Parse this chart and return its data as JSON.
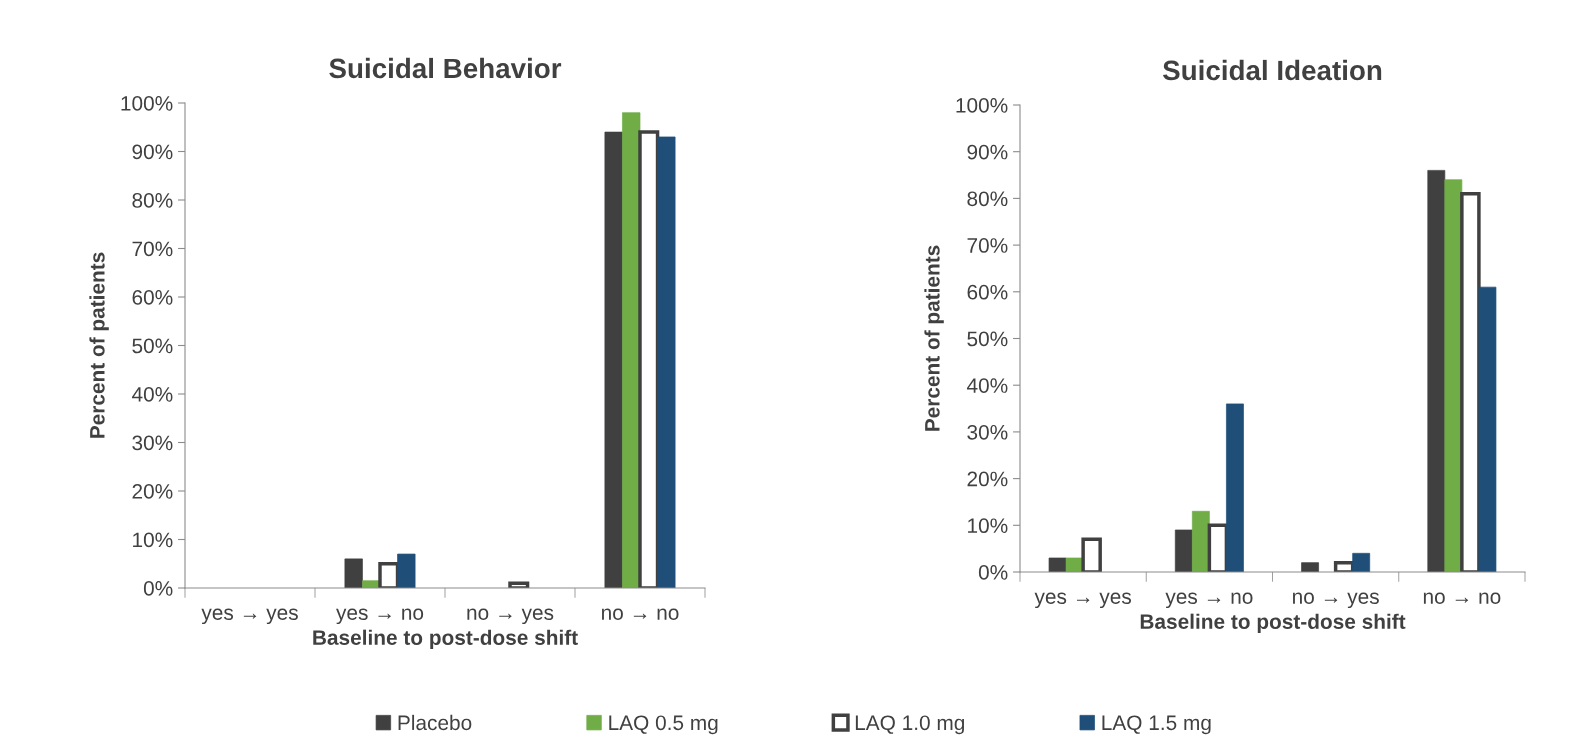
{
  "chart_data": [
    {
      "type": "bar",
      "title": "Suicidal Behavior",
      "xlabel": "Baseline to post-dose shift",
      "ylabel": "Percent of patients",
      "categories": [
        "yes → yes",
        "yes → no",
        "no → yes",
        "no → no"
      ],
      "series": [
        {
          "name": "Placebo",
          "color": "#404040",
          "values": [
            0,
            6,
            0,
            94
          ]
        },
        {
          "name": "LAQ 0.5 mg",
          "color": "#70ad47",
          "values": [
            0,
            1.5,
            0,
            98
          ]
        },
        {
          "name": "LAQ 1.0 mg",
          "color": "#ffffff",
          "values": [
            0,
            5,
            1,
            94
          ]
        },
        {
          "name": "LAQ 1.5 mg",
          "color": "#1f4e79",
          "values": [
            0,
            7,
            0,
            93
          ]
        }
      ],
      "ylim": [
        0,
        100
      ],
      "yticks": [
        {
          "value": 0,
          "label": "0%"
        },
        {
          "value": 10,
          "label": "10%"
        },
        {
          "value": 20,
          "label": "20%"
        },
        {
          "value": 30,
          "label": "30%"
        },
        {
          "value": 40,
          "label": "40%"
        },
        {
          "value": 50,
          "label": "50%"
        },
        {
          "value": 60,
          "label": "60%"
        },
        {
          "value": 70,
          "label": "70%"
        },
        {
          "value": 80,
          "label": "80%"
        },
        {
          "value": 90,
          "label": "90%"
        },
        {
          "value": 100,
          "label": "100%"
        }
      ],
      "grid": false,
      "legend": "bottom"
    },
    {
      "type": "bar",
      "title": "Suicidal Ideation",
      "xlabel": "Baseline to post-dose shift",
      "ylabel": "Percent of patients",
      "categories": [
        "yes → yes",
        "yes → no",
        "no → yes",
        "no → no"
      ],
      "series": [
        {
          "color": "#404040",
          "values": [
            3,
            9,
            2,
            86
          ]
        },
        {
          "color": "#70ad47",
          "values": [
            3,
            13,
            0,
            84
          ]
        },
        {
          "color": "#ffffff",
          "values": [
            7,
            10,
            2,
            81
          ]
        },
        {
          "color": "#1f4e79",
          "values": [
            0,
            36,
            4,
            61
          ]
        }
      ],
      "ylim": [
        0,
        100
      ],
      "yticks": [
        {
          "value": 0,
          "label": "0%"
        },
        {
          "value": 10,
          "label": "10%"
        },
        {
          "value": 20,
          "label": "20%"
        },
        {
          "value": 30,
          "label": "30%"
        },
        {
          "value": 40,
          "label": "40%"
        },
        {
          "value": 50,
          "label": "50%"
        },
        {
          "value": 60,
          "label": "60%"
        },
        {
          "value": 70,
          "label": "70%"
        },
        {
          "value": 80,
          "label": "80%"
        },
        {
          "value": 90,
          "label": "90%"
        },
        {
          "value": 100,
          "label": "100%"
        }
      ],
      "grid": false
    }
  ]
}
